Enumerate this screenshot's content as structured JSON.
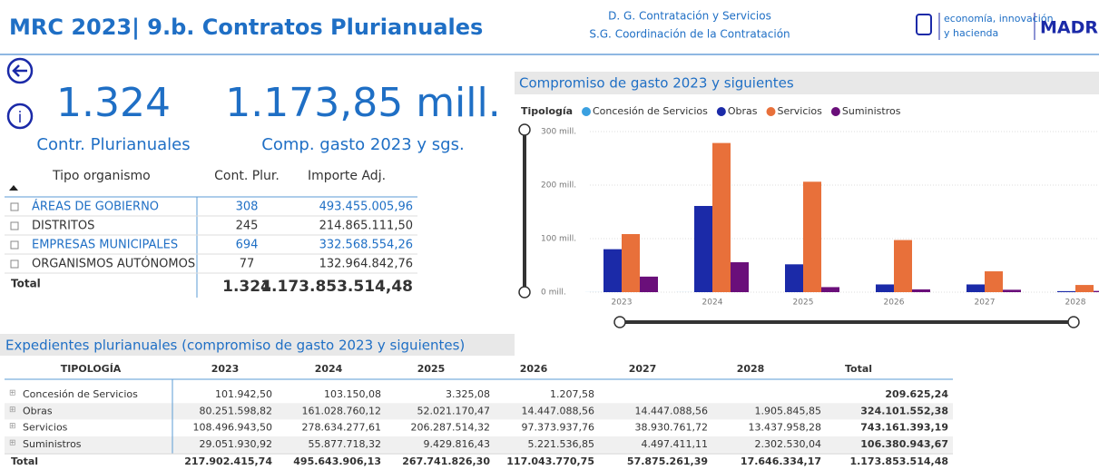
{
  "header": {
    "title": "MRC 2023| 9.b. Contratos Plurianuales",
    "org_lines": [
      "D. G. Contratación y Servicios",
      "S.G. Coordinación de la Contratación"
    ],
    "logo_lines": [
      "economía, innovación",
      "y hacienda"
    ],
    "logo_city": "MADRID"
  },
  "kpis": [
    {
      "value": "1.324",
      "label": "Contr. Plurianuales"
    },
    {
      "value": "1.173,85 mill.",
      "label": "Comp. gasto 2023 y sgs."
    }
  ],
  "left_table": {
    "headers": [
      "Tipo organismo",
      "Cont. Plur.",
      "Importe Adj."
    ],
    "rows": [
      [
        "ÁREAS DE GOBIERNO",
        "308",
        "493.455.005,96"
      ],
      [
        "DISTRITOS",
        "245",
        "214.865.111,50"
      ],
      [
        "EMPRESAS MUNICIPALES",
        "694",
        "332.568.554,26"
      ],
      [
        "ORGANISMOS AUTÓNOMOS",
        "77",
        "132.964.842,76"
      ]
    ],
    "total": [
      "Total",
      "1.324",
      "1.173.853.514,48"
    ]
  },
  "chart_data": {
    "type": "bar",
    "title": "Compromiso de gasto 2023 y siguientes",
    "legend_title": "Tipología",
    "categories": [
      "2023",
      "2024",
      "2025",
      "2026",
      "2027",
      "2028"
    ],
    "series": [
      {
        "name": "Concesión de Servicios",
        "color": "#3aa0e0",
        "values": [
          0.1,
          0.1,
          0.003,
          0.001,
          null,
          null
        ]
      },
      {
        "name": "Obras",
        "color": "#1b2aa8",
        "values": [
          80.25,
          161.03,
          52.02,
          14.45,
          14.45,
          1.91
        ]
      },
      {
        "name": "Servicios",
        "color": "#e8703a",
        "values": [
          108.5,
          278.63,
          206.29,
          97.37,
          38.93,
          13.44
        ]
      },
      {
        "name": "Suministros",
        "color": "#6a0f7a",
        "values": [
          29.05,
          55.88,
          9.43,
          5.22,
          4.5,
          2.3
        ]
      }
    ],
    "ylim": [
      0,
      300
    ],
    "yticks": [
      {
        "value": 0,
        "label": "0 mill."
      },
      {
        "value": 100,
        "label": "100 mill."
      },
      {
        "value": 200,
        "label": "200 mill."
      },
      {
        "value": 300,
        "label": "300 mill."
      }
    ],
    "grid": true,
    "legend": "top"
  },
  "detail_table": {
    "title": "Expedientes plurianuales (compromiso de gasto 2023 y siguientes)",
    "headers": [
      "TIPOLOGÍA",
      "2023",
      "2024",
      "2025",
      "2026",
      "2027",
      "2028",
      "Total"
    ],
    "rows": [
      [
        "Concesión de Servicios",
        "101.942,50",
        "103.150,08",
        "3.325,08",
        "1.207,58",
        null,
        null,
        "209.625,24"
      ],
      [
        "Obras",
        "80.251.598,82",
        "161.028.760,12",
        "52.021.170,47",
        "14.447.088,56",
        "14.447.088,56",
        "1.905.845,85",
        "324.101.552,38"
      ],
      [
        "Servicios",
        "108.496.943,50",
        "278.634.277,61",
        "206.287.514,32",
        "97.373.937,76",
        "38.930.761,72",
        "13.437.958,28",
        "743.161.393,19"
      ],
      [
        "Suministros",
        "29.051.930,92",
        "55.877.718,32",
        "9.429.816,43",
        "5.221.536,85",
        "4.497.411,11",
        "2.302.530,04",
        "106.380.943,67"
      ]
    ],
    "total": [
      "Total",
      "217.902.415,74",
      "495.643.906,13",
      "267.741.826,30",
      "117.043.770,75",
      "57.875.261,39",
      "17.646.334,17",
      "1.173.853.514,48"
    ]
  }
}
